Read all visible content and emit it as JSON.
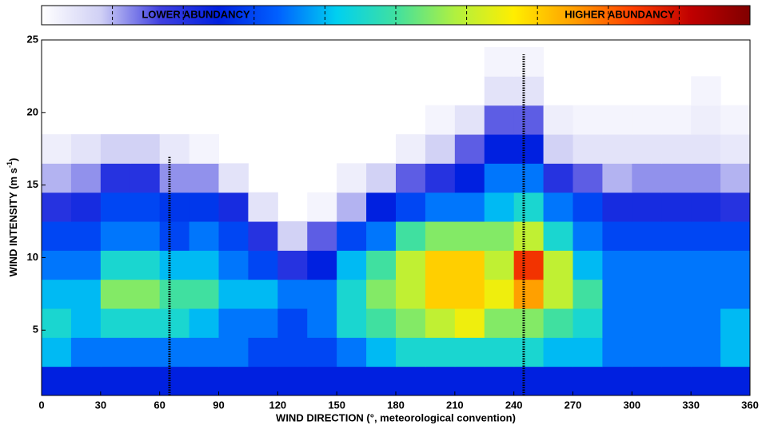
{
  "chart_data": {
    "type": "heatmap",
    "x_label": "WIND DIRECTION (°, meteorological convention)",
    "y_label": {
      "text": "WIND INTENSITY (m s",
      "superscript": "-1",
      "suffix": ")"
    },
    "colorbar": {
      "low_label": "LOWER ABUNDANCY",
      "high_label": "HIGHER ABUNDANCY"
    },
    "colormap": [
      "#ffffff",
      "#d0d0f5",
      "#4040e0",
      "#0020e0",
      "#0060ff",
      "#00d0f0",
      "#40e0a0",
      "#b0f040",
      "#ffee00",
      "#ffa000",
      "#ff4000",
      "#c00000",
      "#800000"
    ],
    "xlim": [
      0,
      360
    ],
    "ylim": [
      0.5,
      25
    ],
    "xticks": [
      0,
      30,
      60,
      90,
      120,
      150,
      180,
      210,
      240,
      270,
      300,
      330,
      360
    ],
    "yticks": [
      5,
      10,
      15,
      20,
      25
    ],
    "xbins": [
      0,
      15,
      30,
      45,
      60,
      75,
      90,
      105,
      120,
      135,
      150,
      165,
      180,
      195,
      210,
      225,
      240,
      255,
      270,
      285,
      300,
      315,
      330,
      345,
      360
    ],
    "ybins": [
      0.5,
      2.5,
      4.5,
      6.5,
      8.5,
      10.5,
      12.5,
      14.5,
      16.5,
      18.5,
      20.5,
      22.5,
      24.5
    ],
    "z": [
      [
        0.25,
        0.25,
        0.25,
        0.25,
        0.25,
        0.25,
        0.25,
        0.25,
        0.25,
        0.25,
        0.25,
        0.25,
        0.25,
        0.25,
        0.25,
        0.25,
        0.25,
        0.25,
        0.25,
        0.25,
        0.25,
        0.25,
        0.25,
        0.25
      ],
      [
        0.4,
        0.35,
        0.35,
        0.35,
        0.35,
        0.35,
        0.35,
        0.3,
        0.3,
        0.3,
        0.35,
        0.4,
        0.45,
        0.45,
        0.45,
        0.45,
        0.45,
        0.4,
        0.4,
        0.35,
        0.35,
        0.35,
        0.35,
        0.4
      ],
      [
        0.45,
        0.4,
        0.45,
        0.45,
        0.45,
        0.4,
        0.35,
        0.35,
        0.3,
        0.35,
        0.45,
        0.5,
        0.55,
        0.6,
        0.65,
        0.55,
        0.55,
        0.5,
        0.45,
        0.35,
        0.35,
        0.35,
        0.35,
        0.4
      ],
      [
        0.4,
        0.4,
        0.55,
        0.55,
        0.5,
        0.5,
        0.4,
        0.4,
        0.35,
        0.35,
        0.45,
        0.55,
        0.6,
        0.7,
        0.7,
        0.65,
        0.75,
        0.6,
        0.5,
        0.35,
        0.35,
        0.35,
        0.35,
        0.35
      ],
      [
        0.35,
        0.35,
        0.45,
        0.45,
        0.4,
        0.4,
        0.35,
        0.3,
        0.2,
        0.25,
        0.4,
        0.5,
        0.6,
        0.7,
        0.7,
        0.6,
        0.85,
        0.6,
        0.4,
        0.35,
        0.35,
        0.35,
        0.35,
        0.35
      ],
      [
        0.3,
        0.3,
        0.35,
        0.35,
        0.3,
        0.35,
        0.3,
        0.2,
        0.08,
        0.15,
        0.3,
        0.35,
        0.5,
        0.55,
        0.55,
        0.55,
        0.6,
        0.45,
        0.35,
        0.3,
        0.3,
        0.3,
        0.3,
        0.3
      ],
      [
        0.2,
        0.22,
        0.3,
        0.3,
        0.28,
        0.28,
        0.22,
        0.05,
        0,
        0.02,
        0.1,
        0.25,
        0.3,
        0.35,
        0.35,
        0.4,
        0.45,
        0.35,
        0.3,
        0.22,
        0.22,
        0.22,
        0.22,
        0.2
      ],
      [
        0.1,
        0.12,
        0.2,
        0.2,
        0.12,
        0.12,
        0.05,
        0,
        0,
        0,
        0.03,
        0.08,
        0.15,
        0.2,
        0.25,
        0.35,
        0.35,
        0.2,
        0.15,
        0.1,
        0.12,
        0.12,
        0.12,
        0.1
      ],
      [
        0.03,
        0.05,
        0.08,
        0.08,
        0.04,
        0.02,
        0,
        0,
        0,
        0,
        0,
        0,
        0.03,
        0.08,
        0.15,
        0.25,
        0.25,
        0.08,
        0.05,
        0.05,
        0.05,
        0.05,
        0.05,
        0.04
      ],
      [
        0,
        0,
        0,
        0,
        0,
        0,
        0,
        0,
        0,
        0,
        0,
        0,
        0,
        0.02,
        0.05,
        0.15,
        0.15,
        0.03,
        0.02,
        0.02,
        0.02,
        0.02,
        0.03,
        0.02
      ],
      [
        0,
        0,
        0,
        0,
        0,
        0,
        0,
        0,
        0,
        0,
        0,
        0,
        0,
        0,
        0,
        0.05,
        0.05,
        0,
        0,
        0,
        0,
        0,
        0.02,
        0
      ],
      [
        0,
        0,
        0,
        0,
        0,
        0,
        0,
        0,
        0,
        0,
        0,
        0,
        0,
        0,
        0,
        0.02,
        0.02,
        0,
        0,
        0,
        0,
        0,
        0,
        0
      ]
    ],
    "markers": [
      {
        "x": 65,
        "y": [
          0.5,
          17
        ]
      },
      {
        "x": 245,
        "y": [
          0.5,
          24
        ]
      }
    ]
  }
}
